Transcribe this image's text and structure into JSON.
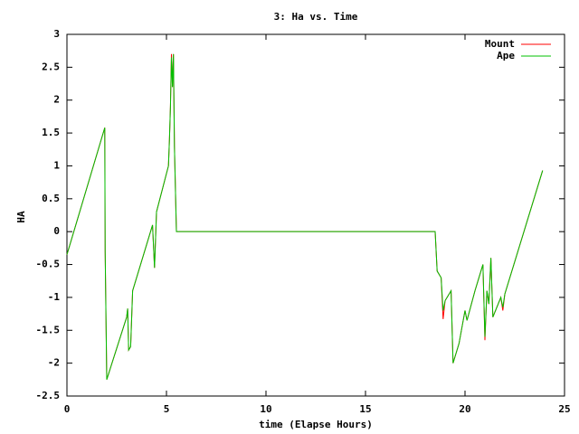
{
  "chart_data": {
    "type": "line",
    "title": "3: Ha vs. Time",
    "xlabel": "time (Elapse Hours)",
    "ylabel": "HA",
    "x": [
      0,
      1.9,
      1.92,
      2.0,
      3.0,
      3.05,
      3.1,
      3.2,
      3.3,
      4.3,
      4.4,
      4.5,
      5.1,
      5.15,
      5.2,
      5.25,
      5.3,
      5.35,
      5.4,
      5.5,
      18.5,
      18.6,
      18.8,
      18.9,
      19.0,
      19.3,
      19.4,
      19.7,
      20.0,
      20.1,
      20.5,
      20.9,
      21.0,
      21.1,
      21.2,
      21.3,
      21.4,
      21.8,
      21.9,
      22.0,
      23.9
    ],
    "series": [
      {
        "name": "Mount",
        "color": "#ff0000",
        "values": [
          -0.35,
          1.58,
          -0.3,
          -2.25,
          -1.3,
          -1.17,
          -1.8,
          -1.75,
          -0.9,
          0.1,
          -0.55,
          0.3,
          1.0,
          1.4,
          1.9,
          2.7,
          2.2,
          2.7,
          1.3,
          0,
          0,
          -0.6,
          -0.7,
          -1.33,
          -1.05,
          -0.9,
          -2.0,
          -1.7,
          -1.2,
          -1.35,
          -0.9,
          -0.5,
          -1.65,
          -0.9,
          -1.1,
          -0.4,
          -1.3,
          -1.0,
          -1.2,
          -0.95,
          0.93
        ]
      },
      {
        "name": "Ape",
        "color": "#00c000",
        "values": [
          -0.35,
          1.58,
          -0.3,
          -2.25,
          -1.3,
          -1.17,
          -1.8,
          -1.75,
          -0.9,
          0.1,
          -0.55,
          0.3,
          1.0,
          1.4,
          1.9,
          2.65,
          2.2,
          2.7,
          1.3,
          0,
          0,
          -0.6,
          -0.7,
          -1.2,
          -1.05,
          -0.9,
          -2.0,
          -1.7,
          -1.2,
          -1.35,
          -0.9,
          -0.5,
          -1.6,
          -0.9,
          -1.1,
          -0.4,
          -1.3,
          -1.0,
          -1.15,
          -0.95,
          0.93
        ]
      }
    ],
    "xlim": [
      0,
      25
    ],
    "xticks": [
      0,
      5,
      10,
      15,
      20,
      25
    ],
    "ylim": [
      -2.5,
      3
    ],
    "yticks": [
      -2.5,
      -2,
      -1.5,
      -1,
      -0.5,
      0,
      0.5,
      1,
      1.5,
      2,
      2.5,
      3
    ],
    "legend": "top-right"
  }
}
